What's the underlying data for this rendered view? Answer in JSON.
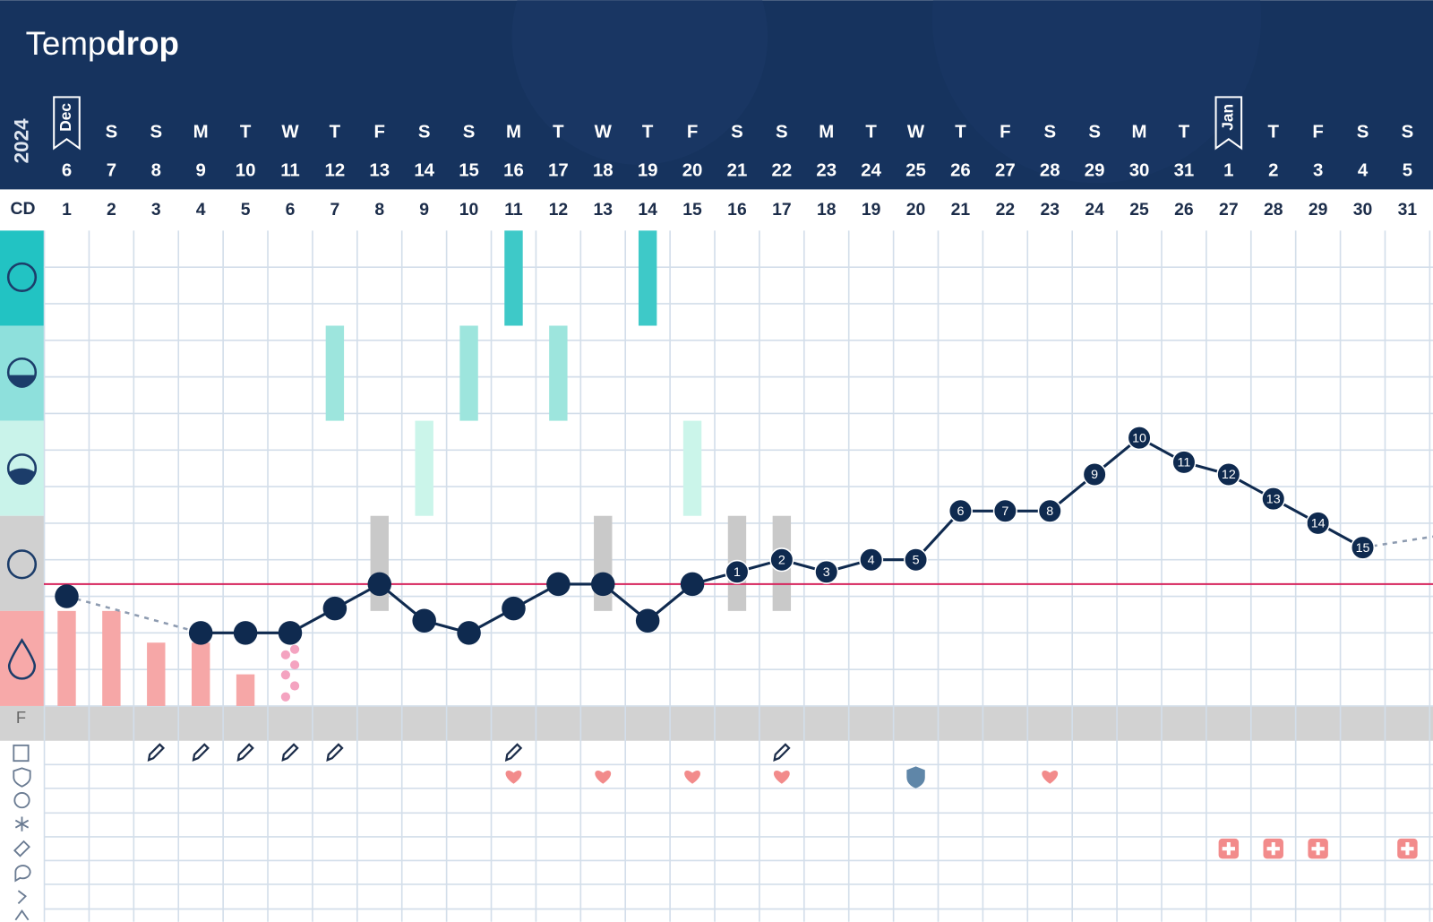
{
  "logo": {
    "part1": "Temp",
    "part2": "drop"
  },
  "year": "2024",
  "cd_label": "CD",
  "fertile_label": "F",
  "columns": [
    {
      "flag": "Dec",
      "date": 6,
      "cd": 1
    },
    {
      "weekday": "S",
      "date": 7,
      "cd": 2
    },
    {
      "weekday": "S",
      "date": 8,
      "cd": 3
    },
    {
      "weekday": "M",
      "date": 9,
      "cd": 4
    },
    {
      "weekday": "T",
      "date": 10,
      "cd": 5
    },
    {
      "weekday": "W",
      "date": 11,
      "cd": 6
    },
    {
      "weekday": "T",
      "date": 12,
      "cd": 7
    },
    {
      "weekday": "F",
      "date": 13,
      "cd": 8
    },
    {
      "weekday": "S",
      "date": 14,
      "cd": 9
    },
    {
      "weekday": "S",
      "date": 15,
      "cd": 10
    },
    {
      "weekday": "M",
      "date": 16,
      "cd": 11
    },
    {
      "weekday": "T",
      "date": 17,
      "cd": 12
    },
    {
      "weekday": "W",
      "date": 18,
      "cd": 13
    },
    {
      "weekday": "T",
      "date": 19,
      "cd": 14
    },
    {
      "weekday": "F",
      "date": 20,
      "cd": 15
    },
    {
      "weekday": "S",
      "date": 21,
      "cd": 16
    },
    {
      "weekday": "S",
      "date": 22,
      "cd": 17
    },
    {
      "weekday": "M",
      "date": 23,
      "cd": 18
    },
    {
      "weekday": "T",
      "date": 24,
      "cd": 19
    },
    {
      "weekday": "W",
      "date": 25,
      "cd": 20
    },
    {
      "weekday": "T",
      "date": 26,
      "cd": 21
    },
    {
      "weekday": "F",
      "date": 27,
      "cd": 22
    },
    {
      "weekday": "S",
      "date": 28,
      "cd": 23
    },
    {
      "weekday": "S",
      "date": 29,
      "cd": 24
    },
    {
      "weekday": "M",
      "date": 30,
      "cd": 25
    },
    {
      "weekday": "T",
      "date": 31,
      "cd": 26
    },
    {
      "flag": "Jan",
      "date": 1,
      "cd": 27
    },
    {
      "weekday": "T",
      "date": 2,
      "cd": 28
    },
    {
      "weekday": "F",
      "date": 3,
      "cd": 29
    },
    {
      "weekday": "S",
      "date": 4,
      "cd": 30
    },
    {
      "weekday": "S",
      "date": 5,
      "cd": 31
    }
  ],
  "temperature": {
    "range": [
      97.0,
      100.9
    ],
    "coverline": 98.0,
    "color": "#0f2a4f",
    "coverline_color": "#d6245c",
    "values": [
      97.9,
      null,
      null,
      97.6,
      97.6,
      97.6,
      97.8,
      98.0,
      97.7,
      97.6,
      97.8,
      98.0,
      98.0,
      97.7,
      98.0,
      98.1,
      98.2,
      98.1,
      98.2,
      98.2,
      98.6,
      98.6,
      98.6,
      98.9,
      99.2,
      99.0,
      98.9,
      98.7,
      98.5,
      98.3,
      null
    ],
    "labels": [
      null,
      null,
      null,
      null,
      null,
      null,
      null,
      null,
      null,
      null,
      null,
      null,
      null,
      null,
      null,
      1,
      2,
      3,
      4,
      5,
      6,
      7,
      8,
      9,
      10,
      11,
      12,
      13,
      14,
      15,
      null
    ]
  },
  "observations": [
    {
      "color": "#3ec9c8",
      "days": [
        11,
        14
      ]
    },
    {
      "color": "#9de5dd",
      "days": [
        7,
        10,
        12
      ]
    },
    {
      "color": "#cbf5ea",
      "days": [
        9,
        15
      ]
    },
    {
      "color": "#c9c9c9",
      "days": [
        8,
        13,
        16,
        17
      ]
    }
  ],
  "flow": {
    "color": "#f6a7a7",
    "max": 3,
    "days": [
      1,
      2,
      3,
      4,
      5
    ],
    "levels": [
      3,
      3,
      2,
      2,
      1
    ],
    "spotting_days": [
      6
    ]
  },
  "notes_days": [
    3,
    4,
    5,
    6,
    7,
    11,
    17
  ],
  "intercourse_days": [
    11,
    13,
    15,
    17,
    23
  ],
  "protected_days": [
    20
  ],
  "medication_days": [
    27,
    28,
    29,
    31
  ]
}
